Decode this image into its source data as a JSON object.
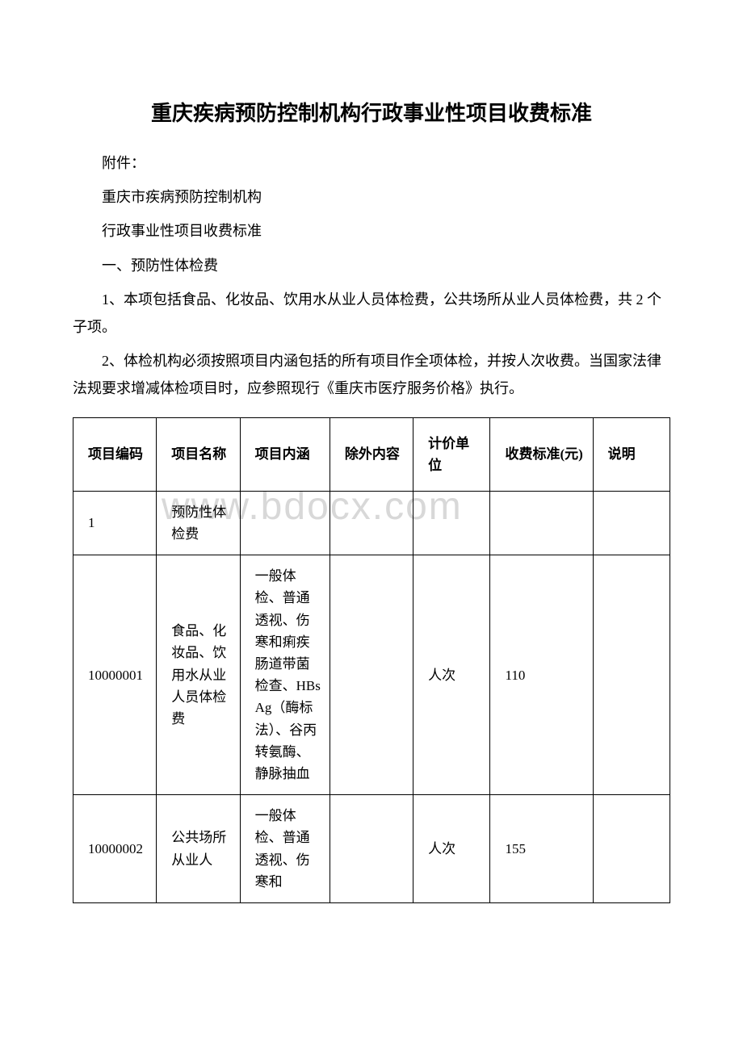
{
  "title": "重庆疾病预防控制机构行政事业性项目收费标准",
  "watermark": "www.bdocx.com",
  "paragraphs": {
    "p1": "附件：",
    "p2": "重庆市疾病预防控制机构",
    "p3": "行政事业性项目收费标准",
    "p4": "一、预防性体检费",
    "p5": "1、本项包括食品、化妆品、饮用水从业人员体检费，公共场所从业人员体检费，共 2 个子项。",
    "p6": "2、体检机构必须按照项目内涵包括的所有项目作全项体检，并按人次收费。当国家法律法规要求增减体检项目时，应参照现行《重庆市医疗服务价格》执行。"
  },
  "table": {
    "headers": {
      "code": "项目编码",
      "name": "项目名称",
      "content": "项目内涵",
      "exclude": "除外内容",
      "unit": "计价单位",
      "fee": "收费标准(元)",
      "note": "说明"
    },
    "rows": [
      {
        "code": "1",
        "name": "预防性体检费",
        "content": "",
        "exclude": "",
        "unit": "",
        "fee": "",
        "note": ""
      },
      {
        "code": "10000001",
        "name": "食品、化妆品、饮用水从业人员体检费",
        "content": "一般体检、普通透视、伤寒和痢疾肠道带菌检查、HBsAg（酶标法）、谷丙转氨酶、静脉抽血",
        "exclude": "",
        "unit": "人次",
        "fee": "110",
        "note": ""
      },
      {
        "code": "10000002",
        "name": "公共场所从业人",
        "content": "一般体检、普通透视、伤寒和",
        "exclude": "",
        "unit": "人次",
        "fee": "155",
        "note": ""
      }
    ]
  }
}
